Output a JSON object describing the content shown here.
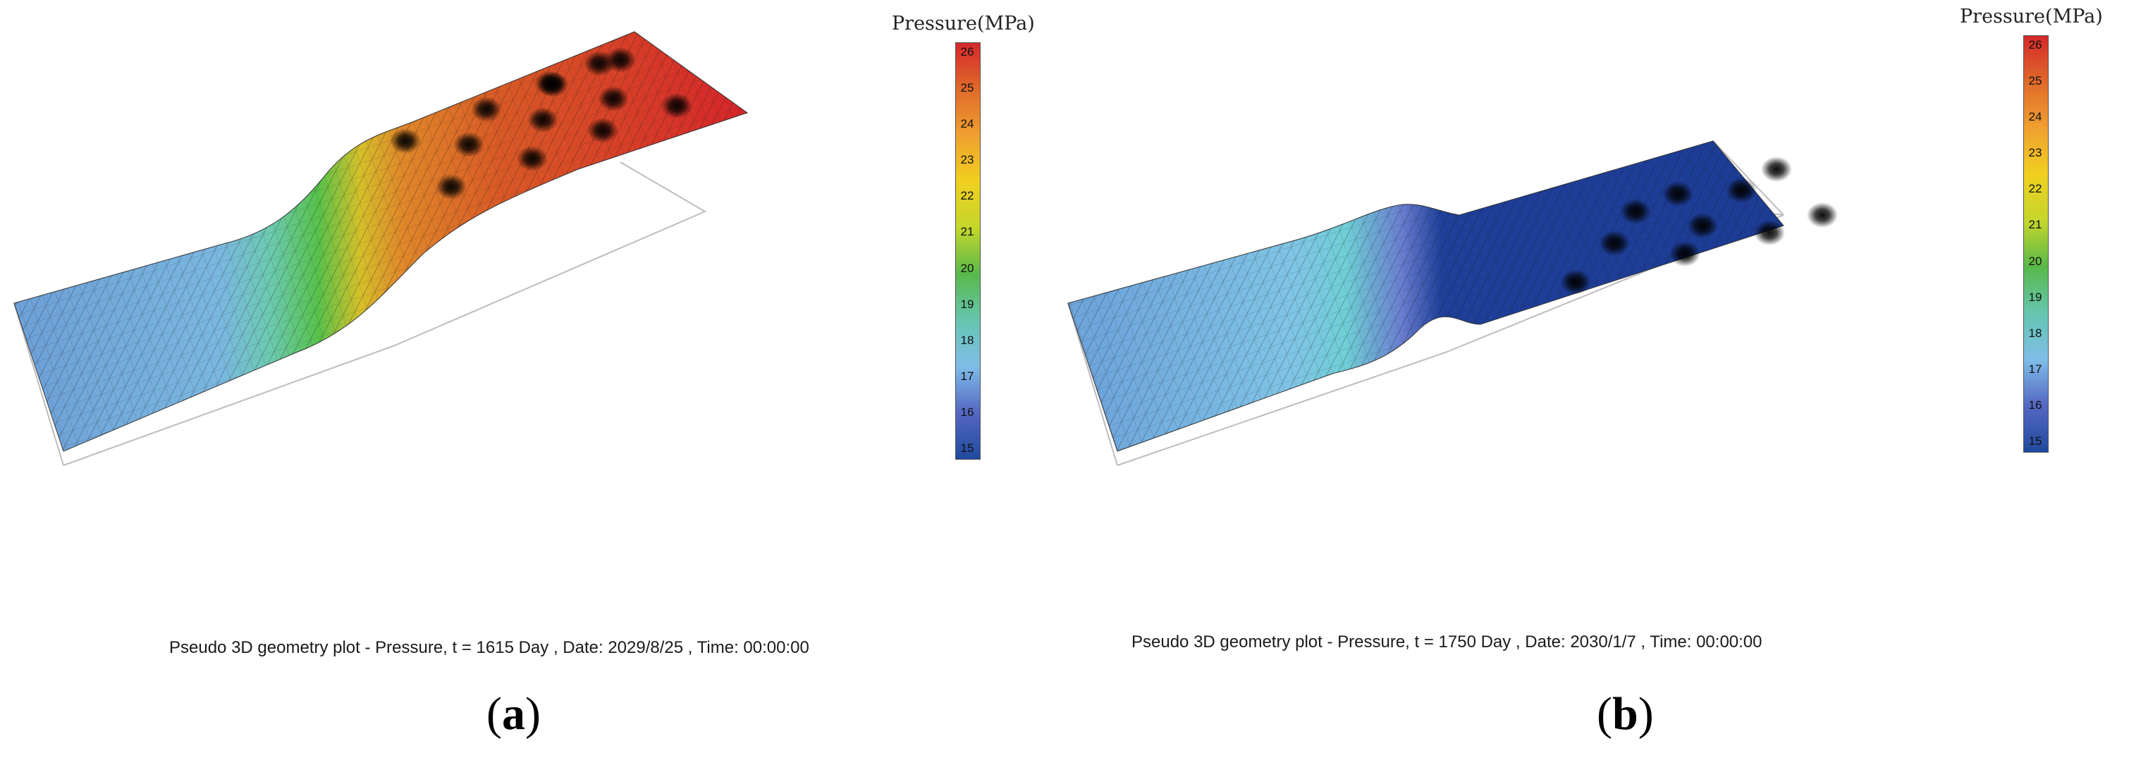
{
  "panels": [
    {
      "label_open": "(",
      "label_letter": "a",
      "label_close": ")",
      "caption": "Pseudo 3D geometry plot - Pressure, t = 1615 Day , Date: 2029/8/25 , Time: 00:00:00",
      "legend_title": "Pressure(MPa)",
      "legend_ticks": [
        "26",
        "25",
        "24",
        "23",
        "22",
        "21",
        "20",
        "19",
        "18",
        "17",
        "16",
        "15"
      ],
      "colors": {
        "low_region": "#6fa8dc",
        "transition": "#57c24a",
        "high_region": "#d93a24"
      },
      "wells": 13
    },
    {
      "label_open": "(",
      "label_letter": "b",
      "label_close": ")",
      "caption": "Pseudo 3D geometry plot - Pressure, t = 1750 Day , Date: 2030/1/7 , Time: 00:00:00",
      "legend_title": "Pressure(MPa)",
      "legend_ticks": [
        "26",
        "25",
        "24",
        "23",
        "22",
        "21",
        "20",
        "19",
        "18",
        "17",
        "16",
        "15"
      ],
      "colors": {
        "low_region": "#6fb8e0",
        "transition": "#5e6fc9",
        "high_region": "#1e3f9a"
      },
      "wells": 10
    }
  ],
  "colorbar": [
    "#1f4a9e",
    "#5567c2",
    "#7fbde8",
    "#65c6b0",
    "#58b94a",
    "#c4d62c",
    "#f0d020",
    "#f0a030",
    "#e06a2a",
    "#d4282a"
  ]
}
